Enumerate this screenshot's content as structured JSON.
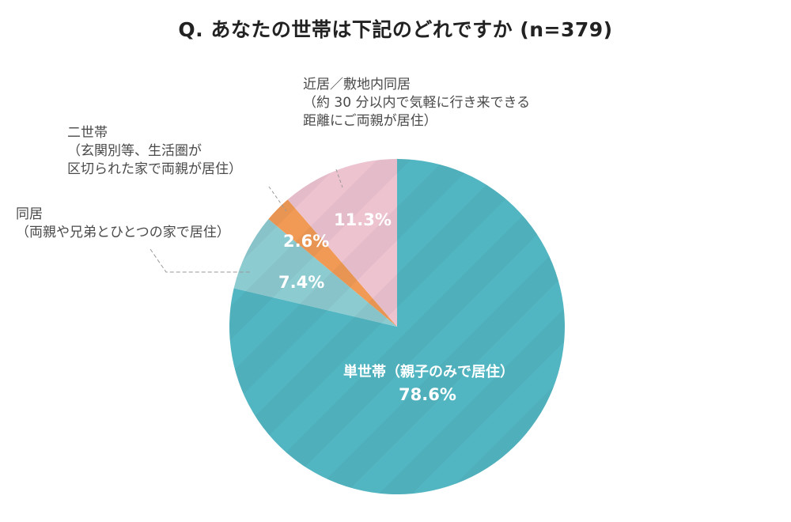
{
  "title": "Q. あなたの世帯は下記のどれですか (n=379)",
  "chart_data": {
    "type": "pie",
    "title": "Q. あなたの世帯は下記のどれですか (n=379)",
    "n": 379,
    "start_angle": "12 o'clock",
    "direction": "clockwise",
    "slices": [
      {
        "label": "単世帯（親子のみで居住）",
        "value": 78.6,
        "display": "78.6%",
        "color": "#52b6c2"
      },
      {
        "label": "同居（両親や兄弟とひとつの家で居住）",
        "value": 7.4,
        "display": "7.4%",
        "color": "#8ccbd0"
      },
      {
        "label": "二世帯（玄関別等、生活圏が区切られた家で両親が居住）",
        "value": 2.6,
        "display": "2.6%",
        "color": "#f19a55"
      },
      {
        "label": "近居／敷地内同居（約 30 分以内で気軽に行き来できる距離にご両親が居住）",
        "value": 11.3,
        "display": "11.3%",
        "color": "#edc3d0"
      }
    ]
  },
  "labels": {
    "single": {
      "line1": "単世帯（親子のみで居住）",
      "pct": "78.6%"
    },
    "cohabit": {
      "line1": "同居",
      "line2": "（両親や兄弟とひとつの家で居住）",
      "pct": "7.4%"
    },
    "twogen": {
      "line1": "二世帯",
      "line2": "（玄関別等、生活圏が",
      "line3": "区切られた家で両親が居住）",
      "pct": "2.6%"
    },
    "nearby": {
      "line1": "近居／敷地内同居",
      "line2": "（約 30 分以内で気軽に行き来できる",
      "line3": "距離にご両親が居住）",
      "pct": "11.3%"
    }
  }
}
